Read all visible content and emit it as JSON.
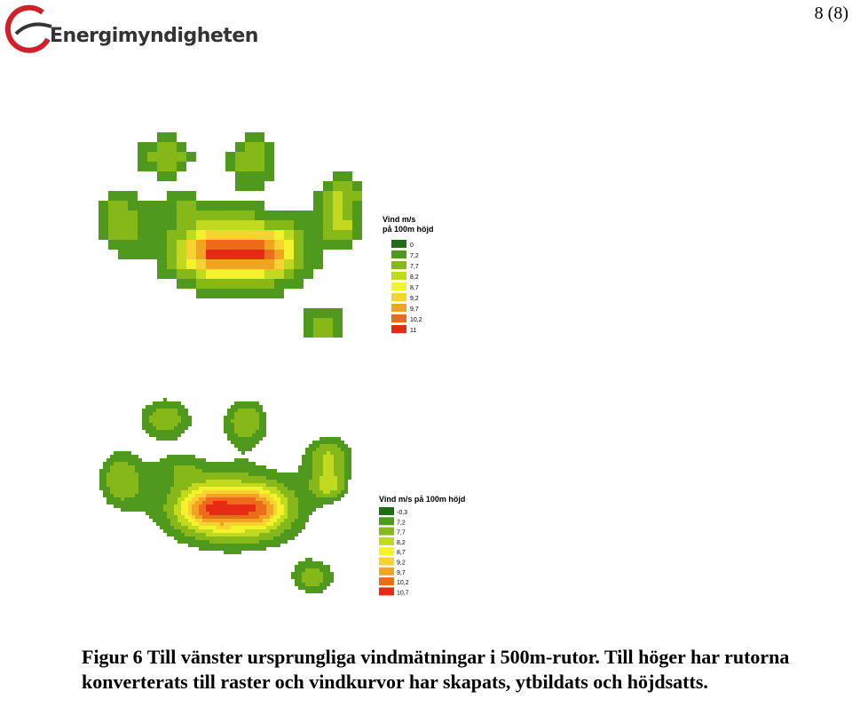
{
  "header": {
    "logo_text": "Energimyndigheten",
    "page_number": "8 (8)"
  },
  "figure": {
    "legend_left": {
      "title_lines": [
        "Vind m/s",
        "på 100m höjd"
      ],
      "items": [
        {
          "label": "0",
          "color": "#1f6e14"
        },
        {
          "label": "7,2",
          "color": "#4f9a1c"
        },
        {
          "label": "7,7",
          "color": "#86b81a"
        },
        {
          "label": "8,2",
          "color": "#c2da1e"
        },
        {
          "label": "8,7",
          "color": "#f4f22a"
        },
        {
          "label": "9,2",
          "color": "#f8d232"
        },
        {
          "label": "9,7",
          "color": "#f2a322"
        },
        {
          "label": "10,2",
          "color": "#ec6c1c"
        },
        {
          "label": "11",
          "color": "#e62a14"
        }
      ]
    },
    "legend_right": {
      "title": "Vind m/s på 100m höjd",
      "items": [
        {
          "label": "-0,3",
          "color": "#1f6e14"
        },
        {
          "label": "7,2",
          "color": "#4f9a1c"
        },
        {
          "label": "7,7",
          "color": "#86b81a"
        },
        {
          "label": "8,2",
          "color": "#c2da1e"
        },
        {
          "label": "8,7",
          "color": "#f4f22a"
        },
        {
          "label": "9,2",
          "color": "#f8d232"
        },
        {
          "label": "9,7",
          "color": "#f2a322"
        },
        {
          "label": "10,2",
          "color": "#ec6c1c"
        },
        {
          "label": "10,7",
          "color": "#e62a14"
        }
      ]
    },
    "caption": "Figur 6 Till vänster ursprungliga vindmätningar i 500m-rutor. Till höger har rutorna konverterats till raster och vindkurvor har skapats, ytbildats och höjdsatts."
  }
}
